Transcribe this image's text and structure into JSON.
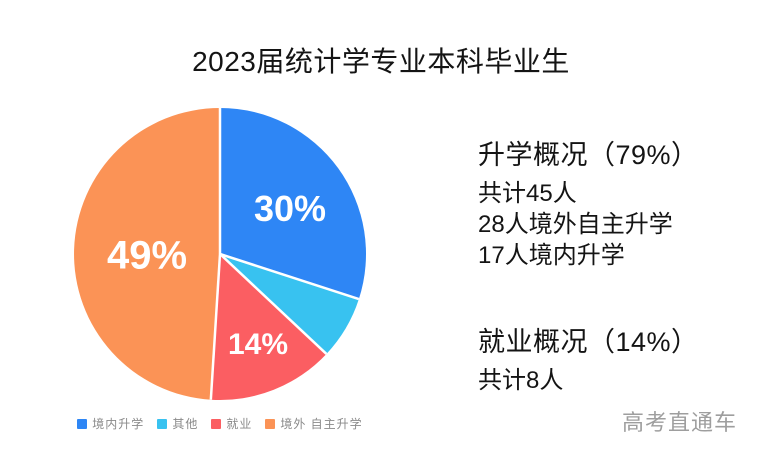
{
  "chart_data": {
    "type": "pie",
    "title": "2023届统计学专业本科毕业生",
    "categories": [
      "境内升学",
      "其他",
      "就业",
      "境外自主升学"
    ],
    "values": [
      30,
      7,
      14,
      49
    ],
    "unit": "percent",
    "slice_labels": [
      "30%",
      "",
      "14%",
      "49%"
    ],
    "colors": [
      "#2E86F5",
      "#38C2F0",
      "#FB5E62",
      "#FB9356"
    ],
    "slice_label_color": "#ffffff",
    "start_angle_deg": 0,
    "direction": "clockwise",
    "divider_color": "#ffffff",
    "legend_labels": [
      "境内升学",
      "其他",
      "就业",
      "境外 自主升学"
    ],
    "legend_position": "bottom",
    "legend_text_color": "#8a8a8a"
  },
  "annotations": [
    {
      "heading": "升学概况（79%）",
      "lines": [
        "共计45人",
        "28人境外自主升学",
        "17人境内升学"
      ]
    },
    {
      "heading": "就业概况（14%）",
      "lines": [
        "共计8人"
      ]
    }
  ],
  "watermark": "高考直通车"
}
